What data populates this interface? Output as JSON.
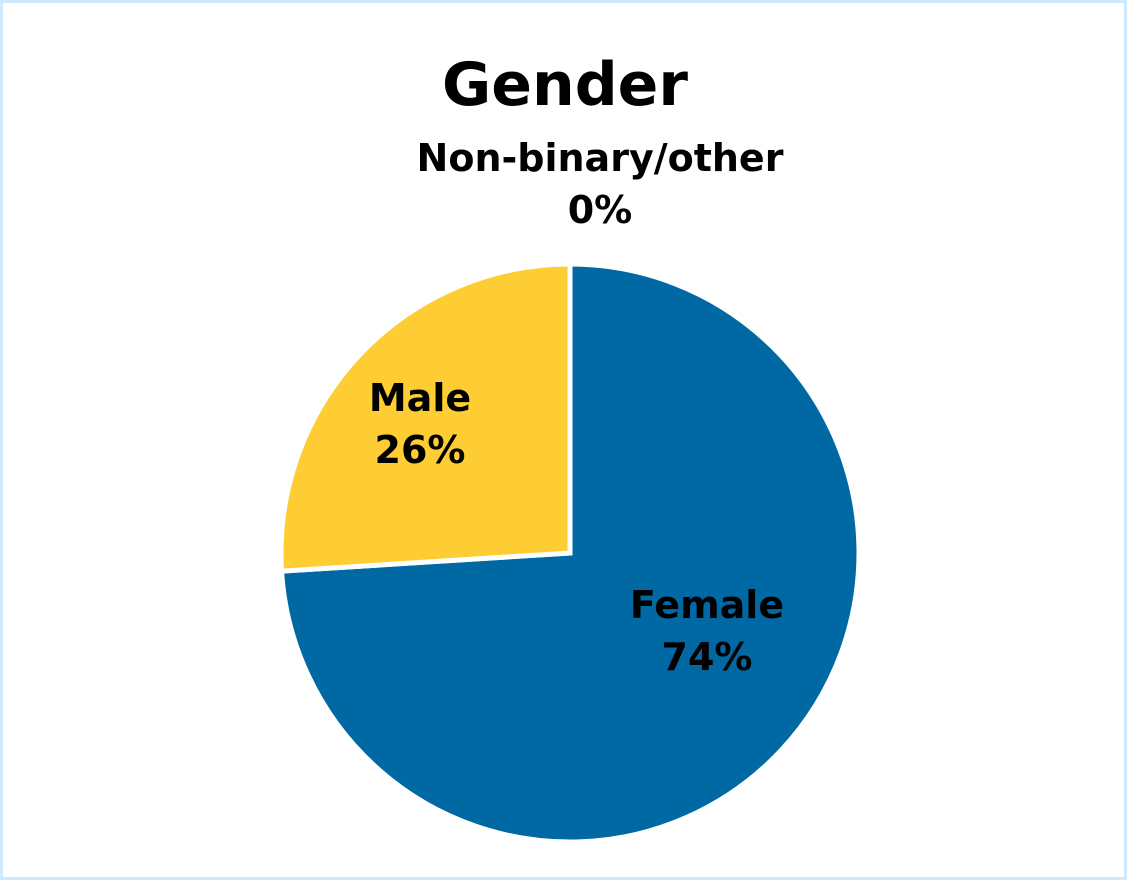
{
  "chart_data": {
    "type": "pie",
    "title": "Gender",
    "slices": [
      {
        "label": "Female",
        "value": 74,
        "value_label": "74%",
        "color": "#0069a3"
      },
      {
        "label": "Male",
        "value": 26,
        "value_label": "26%",
        "color": "#fecd33"
      },
      {
        "label": "Non-binary/other",
        "value": 0,
        "value_label": "0%",
        "color": "#7f7f7f"
      }
    ],
    "start_angle": "top",
    "direction": "clockwise",
    "legend": "none",
    "data_labels": "on slices"
  }
}
